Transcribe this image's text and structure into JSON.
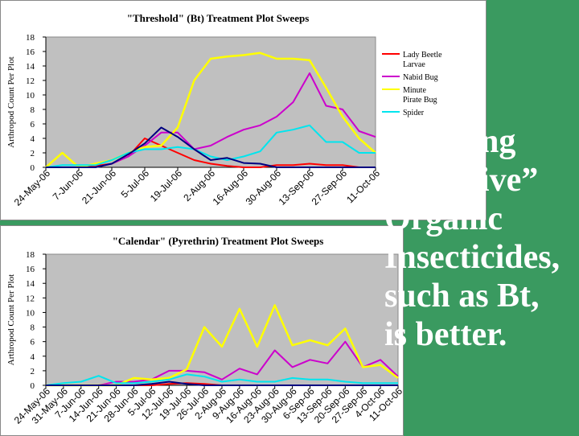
{
  "chart_data": [
    {
      "type": "line",
      "title": "\"Threshold\" (Bt) Treatment  Plot Sweeps",
      "ylabel": "Arthropod Count Per Plot",
      "xlabel": "",
      "ylim": [
        0,
        18
      ],
      "yticks": [
        0,
        2,
        4,
        6,
        8,
        10,
        12,
        14,
        16,
        18
      ],
      "legend_position": "right",
      "categories": [
        "24-May-06",
        "7-Jun-06",
        "21-Jun-06",
        "5-Jul-06",
        "19-Jul-06",
        "2-Aug-06",
        "16-Aug-06",
        "30-Aug-06",
        "13-Sep-06",
        "27-Sep-06",
        "11-Oct-06"
      ],
      "x": [
        0,
        0.5,
        1,
        1.5,
        2,
        2.5,
        3,
        3.5,
        4,
        4.5,
        5,
        5.5,
        6,
        6.5,
        7,
        7.5,
        8,
        8.5,
        9,
        9.5,
        10
      ],
      "series": [
        {
          "name": "Lady Beetle Larvae",
          "color": "#ff0000",
          "values": [
            0,
            0,
            0,
            0.2,
            0.5,
            1.5,
            4,
            3,
            2,
            1,
            0.5,
            0.2,
            0,
            0,
            0.3,
            0.3,
            0.5,
            0.3,
            0.3,
            0,
            0
          ]
        },
        {
          "name": "Nabid Bug",
          "color": "#cc00cc",
          "values": [
            0,
            0,
            0,
            0,
            0.5,
            1.5,
            3,
            4.8,
            4.8,
            2.5,
            3,
            4.2,
            5.2,
            5.8,
            7,
            9,
            13,
            8.5,
            8,
            5,
            4.2
          ]
        },
        {
          "name": "Minute Pirate Bug",
          "color": "#ffff00",
          "values": [
            0,
            2,
            0,
            0.5,
            1,
            2,
            2.8,
            3,
            5.5,
            12,
            15,
            15.3,
            15.5,
            15.8,
            15,
            15,
            14.8,
            11,
            7,
            4,
            2
          ]
        },
        {
          "name": "Spider",
          "color": "#00e5ee",
          "values": [
            0,
            0.3,
            0.3,
            0.3,
            1,
            2,
            2.5,
            2.5,
            2.8,
            2.5,
            1.5,
            1,
            1.5,
            2.2,
            4.8,
            5.2,
            5.8,
            3.5,
            3.5,
            2,
            2
          ]
        },
        {
          "name": "",
          "color": "#000080",
          "values": [
            0,
            0,
            0,
            0,
            0.5,
            1.8,
            3.3,
            5.5,
            4.2,
            2.5,
            1,
            1.3,
            0.6,
            0.5,
            0,
            0,
            0,
            0,
            0,
            0,
            0
          ]
        }
      ]
    },
    {
      "type": "line",
      "title": "\"Calendar\" (Pyrethrin) Treatment Plot Sweeps",
      "ylabel": "Arthropod Count Per Plot",
      "xlabel": "",
      "ylim": [
        0,
        18
      ],
      "yticks": [
        0,
        2,
        4,
        6,
        8,
        10,
        12,
        14,
        16,
        18
      ],
      "legend_position": "right",
      "categories": [
        "24-May-06",
        "31-May-06",
        "7-Jun-06",
        "14-Jun-06",
        "21-Jun-06",
        "28-Jun-06",
        "5-Jul-06",
        "12-Jul-06",
        "19-Jul-06",
        "26-Jul-06",
        "2-Aug-06",
        "9-Aug-06",
        "16-Aug-06",
        "23-Aug-06",
        "30-Aug-06",
        "6-Sep-06",
        "13-Sep-06",
        "20-Sep-06",
        "27-Sep-06",
        "4-Oct-06",
        "11-Oct-06"
      ],
      "x": [
        0,
        1,
        2,
        3,
        4,
        5,
        6,
        7,
        8,
        9,
        10,
        11,
        12,
        13,
        14,
        15,
        16,
        17,
        18,
        19,
        20
      ],
      "series": [
        {
          "name": "Lady Beetle Larvae",
          "color": "#ff0000",
          "values": [
            0,
            0,
            0,
            0,
            0,
            0,
            0,
            0.2,
            0.3,
            0.2,
            0,
            0,
            0,
            0,
            0,
            0,
            0,
            0,
            0,
            0,
            0
          ]
        },
        {
          "name": "Nabid Bug",
          "color": "#cc00cc",
          "values": [
            0,
            0,
            0,
            0,
            0.5,
            0.5,
            0.8,
            2,
            2,
            1.8,
            0.8,
            2.3,
            1.5,
            4.8,
            2.5,
            3.5,
            3,
            6,
            2.5,
            3.5,
            1.2
          ]
        },
        {
          "name": "Minute Pirate Bug",
          "color": "#ffff00",
          "values": [
            0,
            0,
            0,
            0,
            0,
            1,
            0.8,
            1,
            2.2,
            8,
            5.3,
            10.5,
            5.3,
            11,
            5.5,
            6.2,
            5.5,
            7.8,
            2.5,
            2.8,
            1
          ]
        },
        {
          "name": "Spider",
          "color": "#00e5ee",
          "values": [
            0,
            0.3,
            0.5,
            1.3,
            0.3,
            0.3,
            0.5,
            0.8,
            1.5,
            1.2,
            0.5,
            0.8,
            0.5,
            0.5,
            1,
            0.8,
            0.8,
            0.5,
            0.3,
            0.3,
            0.3
          ]
        },
        {
          "name": "",
          "color": "#000080",
          "values": [
            0,
            0,
            0,
            0,
            0,
            0,
            0.2,
            0.5,
            0.2,
            0,
            0,
            0,
            0,
            0,
            0,
            0,
            0,
            0,
            0,
            0,
            0
          ]
        }
      ]
    }
  ],
  "slide_text": [
    "Spraying",
    "“selective”",
    "Organic",
    "Insecticides,",
    "such as Bt,",
    " is better."
  ],
  "colors": {
    "background": "#3a9a60",
    "plot_area": "#c0c0c0",
    "text": "#ffffff"
  }
}
